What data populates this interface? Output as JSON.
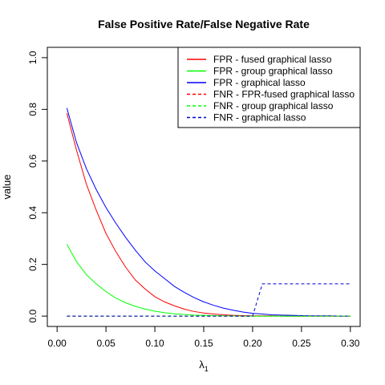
{
  "chart_data": {
    "type": "line",
    "title": "False Positive Rate/False Negative Rate",
    "xlabel": "λ",
    "xlabel_subscript": "1",
    "ylabel": "value",
    "xlim": [
      -0.01,
      0.31
    ],
    "ylim": [
      -0.04,
      1.04
    ],
    "xticks": [
      0.0,
      0.05,
      0.1,
      0.15,
      0.2,
      0.25,
      0.3
    ],
    "xtick_labels": [
      "0.00",
      "0.05",
      "0.10",
      "0.15",
      "0.20",
      "0.25",
      "0.30"
    ],
    "yticks": [
      0.0,
      0.2,
      0.4,
      0.6,
      0.8,
      1.0
    ],
    "ytick_labels": [
      "0.0",
      "0.2",
      "0.4",
      "0.6",
      "0.8",
      "1.0"
    ],
    "grid": false,
    "legend_position": "top-right",
    "series": [
      {
        "name": "FPR - fused graphical lasso",
        "color": "#ff0000",
        "dash": "solid",
        "x": [
          0.01,
          0.02,
          0.03,
          0.04,
          0.05,
          0.06,
          0.07,
          0.08,
          0.09,
          0.1,
          0.11,
          0.12,
          0.13,
          0.14,
          0.15,
          0.16,
          0.17,
          0.18,
          0.19,
          0.2,
          0.21,
          0.22,
          0.23,
          0.24,
          0.25,
          0.26,
          0.27,
          0.28,
          0.29,
          0.3
        ],
        "y": [
          0.785,
          0.64,
          0.51,
          0.41,
          0.32,
          0.25,
          0.19,
          0.14,
          0.105,
          0.075,
          0.055,
          0.04,
          0.027,
          0.018,
          0.012,
          0.008,
          0.005,
          0.003,
          0.002,
          0.001,
          0.001,
          0.001,
          0.0,
          0.0,
          0.0,
          0.0,
          0.0,
          0.0,
          0.0,
          0.0
        ]
      },
      {
        "name": "FPR - group graphical lasso",
        "color": "#00ff00",
        "dash": "solid",
        "x": [
          0.01,
          0.02,
          0.03,
          0.04,
          0.05,
          0.06,
          0.07,
          0.08,
          0.09,
          0.1,
          0.11,
          0.12,
          0.13,
          0.14,
          0.15,
          0.16,
          0.17,
          0.18,
          0.19,
          0.2,
          0.21,
          0.22,
          0.23,
          0.24,
          0.25,
          0.26,
          0.27,
          0.28,
          0.29,
          0.3
        ],
        "y": [
          0.278,
          0.21,
          0.16,
          0.125,
          0.095,
          0.07,
          0.052,
          0.038,
          0.027,
          0.019,
          0.013,
          0.009,
          0.006,
          0.004,
          0.003,
          0.002,
          0.001,
          0.001,
          0.0,
          0.0,
          0.0,
          0.0,
          0.0,
          0.0,
          0.0,
          0.0,
          0.0,
          0.0,
          0.0,
          0.0
        ]
      },
      {
        "name": "FPR - graphical lasso",
        "color": "#0000ff",
        "dash": "solid",
        "x": [
          0.01,
          0.02,
          0.03,
          0.04,
          0.05,
          0.06,
          0.07,
          0.08,
          0.09,
          0.1,
          0.11,
          0.12,
          0.13,
          0.14,
          0.15,
          0.16,
          0.17,
          0.18,
          0.19,
          0.2,
          0.21,
          0.22,
          0.23,
          0.24,
          0.25,
          0.26,
          0.27,
          0.28,
          0.29,
          0.3
        ],
        "y": [
          0.805,
          0.67,
          0.57,
          0.49,
          0.42,
          0.36,
          0.305,
          0.255,
          0.21,
          0.175,
          0.145,
          0.115,
          0.092,
          0.072,
          0.055,
          0.042,
          0.031,
          0.023,
          0.016,
          0.011,
          0.008,
          0.005,
          0.004,
          0.003,
          0.002,
          0.001,
          0.001,
          0.001,
          0.0,
          0.0
        ]
      },
      {
        "name": "FNR - FPR-fused graphical lasso",
        "color": "#ff0000",
        "dash": "dashed",
        "x": [
          0.01,
          0.3
        ],
        "y": [
          0.0,
          0.0
        ]
      },
      {
        "name": "FNR - group graphical lasso",
        "color": "#00ff00",
        "dash": "dashed",
        "x": [
          0.01,
          0.3
        ],
        "y": [
          0.0,
          0.0
        ]
      },
      {
        "name": "FNR - graphical lasso",
        "color": "#0000cd",
        "dash": "dashed",
        "x": [
          0.01,
          0.2,
          0.21,
          0.3
        ],
        "y": [
          0.0,
          0.0,
          0.125,
          0.125
        ]
      }
    ]
  }
}
